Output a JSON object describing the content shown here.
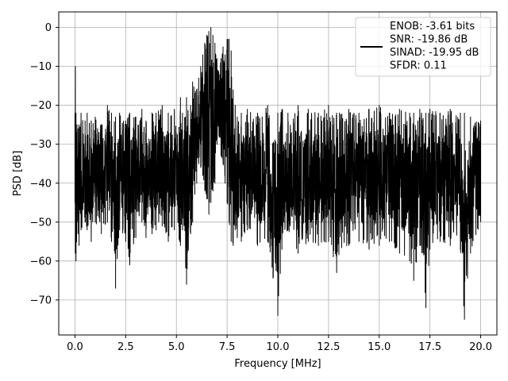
{
  "chart_data": {
    "type": "line",
    "xlabel": "Frequency [MHz]",
    "ylabel": "PSD [dB]",
    "xlim": [
      -0.8,
      20.8
    ],
    "ylim": [
      -79.0,
      4.0
    ],
    "x_ticks": [
      0.0,
      2.5,
      5.0,
      7.5,
      10.0,
      12.5,
      15.0,
      17.5,
      20.0
    ],
    "x_tick_labels": [
      "0.0",
      "2.5",
      "5.0",
      "7.5",
      "10.0",
      "12.5",
      "15.0",
      "17.5",
      "20.0"
    ],
    "y_ticks": [
      0,
      -10,
      -20,
      -30,
      -40,
      -50,
      -60,
      -70
    ],
    "y_tick_labels": [
      "0",
      "−10",
      "−20",
      "−30",
      "−40",
      "−50",
      "−60",
      "−70"
    ],
    "grid": true,
    "legend_position": "top-right",
    "series": [
      {
        "name": "ENOB: -3.61 bits\nSNR: -19.86 dB\nSINAD: -19.95 dB\nSFDR: 0.11",
        "color": "#000000",
        "x": [
          0.0,
          0.02,
          0.05,
          0.08,
          0.1,
          0.15,
          0.2,
          0.3,
          0.5,
          0.6,
          0.8,
          1.0,
          1.3,
          1.6,
          1.8,
          2.0,
          2.2,
          2.5,
          2.7,
          3.0,
          3.3,
          3.5,
          3.8,
          4.0,
          4.3,
          4.6,
          4.9,
          5.2,
          5.3,
          5.5,
          5.7,
          5.8,
          6.0,
          6.1,
          6.2,
          6.3,
          6.4,
          6.5,
          6.6,
          6.7,
          6.8,
          6.9,
          7.0,
          7.1,
          7.2,
          7.3,
          7.4,
          7.5,
          7.6,
          7.7,
          7.8,
          7.9,
          8.0,
          8.2,
          8.5,
          9.0,
          9.5,
          10.0,
          10.2,
          10.5,
          11.0,
          11.5,
          12.0,
          12.5,
          12.9,
          13.5,
          14.0,
          14.5,
          15.0,
          15.5,
          16.0,
          16.5,
          16.7,
          17.0,
          17.3,
          17.5,
          18.0,
          18.5,
          19.0,
          19.2,
          19.5,
          20.0
        ],
        "y_upper": [
          -22,
          -10,
          -22,
          -27,
          -25,
          -26,
          -25,
          -22,
          -24,
          -22,
          -24,
          -23,
          -25,
          -20,
          -22,
          -23,
          -22,
          -24,
          -22,
          -23,
          -21,
          -24,
          -22,
          -22,
          -20,
          -22,
          -21,
          -18,
          -22,
          -18,
          -20,
          -14,
          -16,
          -13,
          -10,
          -7,
          -4,
          -2,
          -1,
          0,
          -2,
          -4,
          -8,
          -12,
          -8,
          -5,
          -7,
          -3,
          -3,
          -6,
          -16,
          -20,
          -23,
          -22,
          -21,
          -22,
          -20,
          -22,
          -21,
          -22,
          -20,
          -21,
          -22,
          -20,
          -22,
          -21,
          -22,
          -21,
          -20,
          -22,
          -21,
          -22,
          -22,
          -21,
          -22,
          -21,
          -22,
          -21,
          -22,
          -22,
          -23,
          -24
        ],
        "y_lower": [
          -45,
          -58,
          -60,
          -55,
          -50,
          -53,
          -56,
          -52,
          -50,
          -52,
          -55,
          -50,
          -53,
          -50,
          -55,
          -67,
          -52,
          -55,
          -61,
          -54,
          -50,
          -54,
          -53,
          -52,
          -51,
          -55,
          -52,
          -56,
          -52,
          -66,
          -53,
          -50,
          -40,
          -35,
          -36,
          -38,
          -42,
          -44,
          -48,
          -45,
          -42,
          -40,
          -30,
          -28,
          -33,
          -35,
          -40,
          -45,
          -50,
          -55,
          -56,
          -52,
          -54,
          -55,
          -52,
          -56,
          -55,
          -74,
          -57,
          -52,
          -58,
          -55,
          -56,
          -55,
          -63,
          -56,
          -55,
          -57,
          -56,
          -55,
          -58,
          -60,
          -65,
          -56,
          -72,
          -57,
          -55,
          -56,
          -57,
          -75,
          -58,
          -50
        ]
      }
    ]
  }
}
